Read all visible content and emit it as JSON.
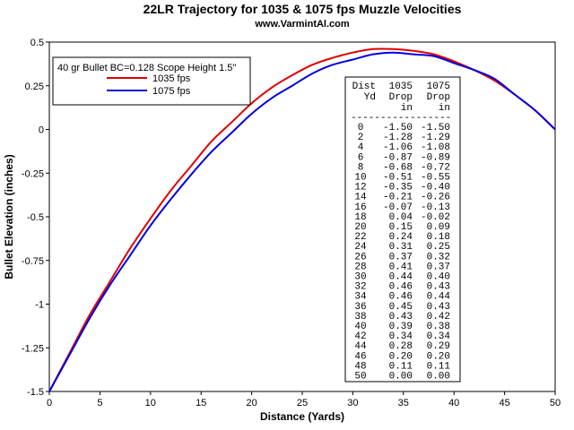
{
  "chart_data": {
    "type": "line",
    "title": "22LR Trajectory for 1035 & 1075 fps Muzzle Velocities",
    "subtitle": "www.VarmintAl.com",
    "xlabel": "Distance (Yards)",
    "ylabel": "Bullet Elevation (inches)",
    "xlim": [
      0,
      50
    ],
    "ylim": [
      -1.5,
      0.5
    ],
    "x_ticks": [
      "0",
      "5",
      "10",
      "15",
      "20",
      "25",
      "30",
      "35",
      "40",
      "45",
      "50"
    ],
    "y_ticks": [
      "0.5",
      "0.25",
      "0",
      "-0.25",
      "-0.5",
      "-0.75",
      "-1",
      "-1.25",
      "-1.5"
    ],
    "grid": false,
    "legend_title": "40 gr Bullet BC=0.128 Scope Height 1.5\"",
    "legend_position": "top-left",
    "x": [
      0,
      2,
      4,
      6,
      8,
      10,
      12,
      14,
      16,
      18,
      20,
      22,
      24,
      26,
      28,
      30,
      32,
      34,
      36,
      38,
      40,
      42,
      44,
      46,
      48,
      50
    ],
    "series": [
      {
        "name": "1035 fps",
        "color": "#e00000",
        "values": [
          -1.5,
          -1.28,
          -1.06,
          -0.87,
          -0.68,
          -0.51,
          -0.35,
          -0.21,
          -0.07,
          0.04,
          0.15,
          0.24,
          0.31,
          0.37,
          0.41,
          0.44,
          0.46,
          0.46,
          0.45,
          0.43,
          0.39,
          0.34,
          0.28,
          0.2,
          0.11,
          0.0
        ]
      },
      {
        "name": "1075 fps",
        "color": "#0000e0",
        "values": [
          -1.5,
          -1.29,
          -1.08,
          -0.89,
          -0.72,
          -0.55,
          -0.4,
          -0.26,
          -0.13,
          -0.02,
          0.09,
          0.18,
          0.25,
          0.32,
          0.37,
          0.4,
          0.43,
          0.44,
          0.43,
          0.42,
          0.38,
          0.34,
          0.29,
          0.2,
          0.11,
          0.0
        ]
      }
    ],
    "table": {
      "headers": [
        [
          "Dist",
          "1035",
          "1075"
        ],
        [
          "Yd",
          "Drop",
          "Drop"
        ],
        [
          "",
          "in",
          "in"
        ]
      ],
      "separator": "-----------------",
      "rows": [
        [
          "0",
          "-1.50",
          "-1.50"
        ],
        [
          "2",
          "-1.28",
          "-1.29"
        ],
        [
          "4",
          "-1.06",
          "-1.08"
        ],
        [
          "6",
          "-0.87",
          "-0.89"
        ],
        [
          "8",
          "-0.68",
          "-0.72"
        ],
        [
          "10",
          "-0.51",
          "-0.55"
        ],
        [
          "12",
          "-0.35",
          "-0.40"
        ],
        [
          "14",
          "-0.21",
          "-0.26"
        ],
        [
          "16",
          "-0.07",
          "-0.13"
        ],
        [
          "18",
          "0.04",
          "-0.02"
        ],
        [
          "20",
          "0.15",
          "0.09"
        ],
        [
          "22",
          "0.24",
          "0.18"
        ],
        [
          "24",
          "0.31",
          "0.25"
        ],
        [
          "26",
          "0.37",
          "0.32"
        ],
        [
          "28",
          "0.41",
          "0.37"
        ],
        [
          "30",
          "0.44",
          "0.40"
        ],
        [
          "32",
          "0.46",
          "0.43"
        ],
        [
          "34",
          "0.46",
          "0.44"
        ],
        [
          "36",
          "0.45",
          "0.43"
        ],
        [
          "38",
          "0.43",
          "0.42"
        ],
        [
          "40",
          "0.39",
          "0.38"
        ],
        [
          "42",
          "0.34",
          "0.34"
        ],
        [
          "44",
          "0.28",
          "0.29"
        ],
        [
          "46",
          "0.20",
          "0.20"
        ],
        [
          "48",
          "0.11",
          "0.11"
        ],
        [
          "50",
          "0.00",
          "0.00"
        ]
      ]
    }
  }
}
